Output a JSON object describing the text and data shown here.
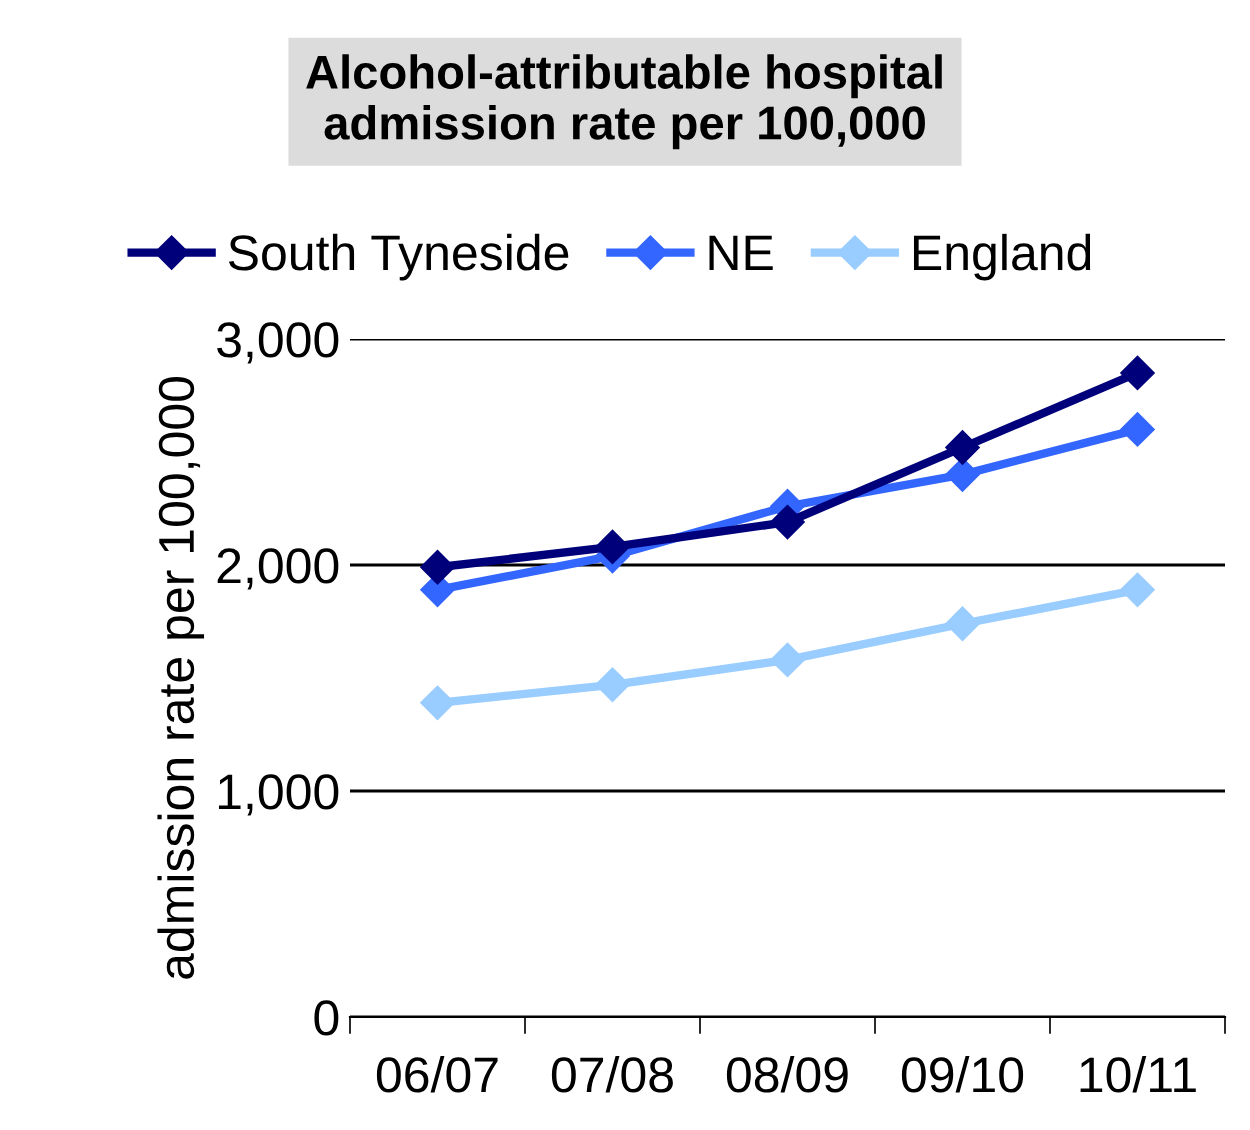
{
  "chart_data": {
    "type": "line",
    "title": "Alcohol-attributable hospital\nadmission rate per 100,000",
    "ylabel": "admission rate per 100,000",
    "categories": [
      "06/07",
      "07/08",
      "08/09",
      "09/10",
      "10/11"
    ],
    "series": [
      {
        "name": "South Tyneside",
        "color": "#00007a",
        "values": [
          1990,
          2080,
          2190,
          2520,
          2850
        ]
      },
      {
        "name": "NE",
        "color": "#3366ff",
        "values": [
          1890,
          2040,
          2260,
          2400,
          2600
        ]
      },
      {
        "name": "England",
        "color": "#99ccff",
        "values": [
          1390,
          1470,
          1580,
          1740,
          1890
        ]
      }
    ],
    "ylim": [
      0,
      3000
    ],
    "yticks": [
      {
        "value": 0,
        "label": "0"
      },
      {
        "value": 1000,
        "label": "1,000"
      },
      {
        "value": 2000,
        "label": "2,000"
      },
      {
        "value": 3000,
        "label": "3,000"
      }
    ],
    "grid": "y",
    "legend": "top",
    "marker": "diamond",
    "line_style": "solid"
  }
}
